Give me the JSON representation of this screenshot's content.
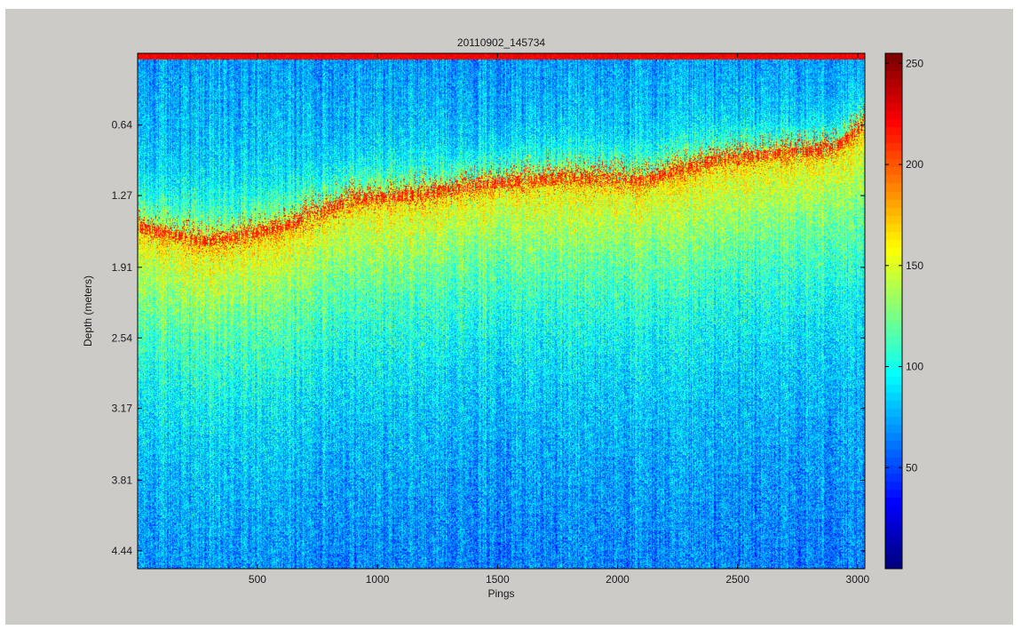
{
  "figure": {
    "background": "#cdcbc7"
  },
  "chart_data": {
    "type": "heatmap",
    "title": "20110902_145734",
    "xlabel": "Pings",
    "ylabel": "Depth (meters)",
    "xlim": [
      1,
      3030
    ],
    "ylim": [
      0.0,
      4.6
    ],
    "y_reversed": true,
    "x_ticks": [
      500,
      1000,
      1500,
      2000,
      2500,
      3000
    ],
    "y_ticks": [
      "0.64",
      "1.27",
      "1.91",
      "2.54",
      "3.17",
      "3.81",
      "4.44"
    ],
    "colorbar": {
      "colormap": "jet",
      "clim": [
        0,
        255
      ],
      "ticks": [
        50,
        100,
        150,
        200,
        250
      ]
    },
    "features": {
      "surface_band": {
        "depth_range": [
          0.0,
          0.05
        ],
        "value": 225
      },
      "bottom_line": {
        "x": [
          1,
          300,
          600,
          900,
          1200,
          1500,
          1800,
          2100,
          2400,
          2700,
          2900,
          3030
        ],
        "depth": [
          1.55,
          1.68,
          1.55,
          1.3,
          1.25,
          1.15,
          1.1,
          1.13,
          0.95,
          0.88,
          0.85,
          0.62
        ],
        "value": 215
      },
      "upper_water_mean": 90,
      "below_bottom_mean": 140,
      "deep_water_mean": 55
    }
  }
}
